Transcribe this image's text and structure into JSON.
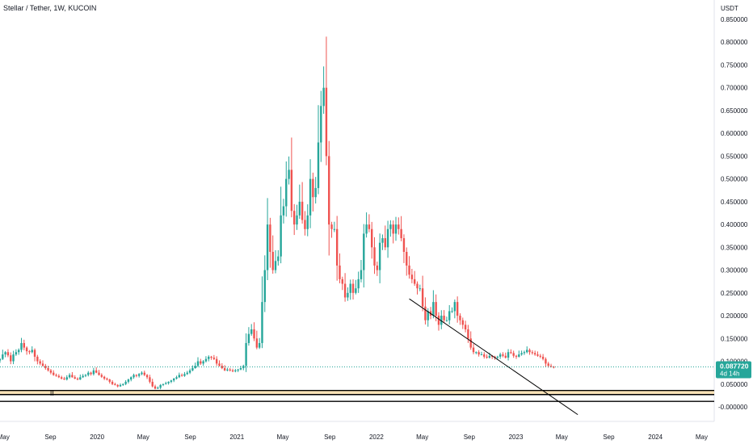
{
  "title": "Stellar / Tether, 1W, KUCOIN",
  "colors": {
    "up": "#26a69a",
    "down": "#ef5350",
    "zone_fill": "#fbe3b8",
    "line": "#000000",
    "price_line": "#26a69a",
    "axis_text": "#131722"
  },
  "chart_data": {
    "type": "candlestick",
    "title": "Stellar / Tether, 1W, KUCOIN",
    "y_unit_label": "USDT",
    "ylim": [
      -0.01,
      0.86
    ],
    "y_ticks": [
      0.85,
      0.8,
      0.75,
      0.7,
      0.65,
      0.6,
      0.55,
      0.5,
      0.45,
      0.4,
      0.35,
      0.3,
      0.25,
      0.2,
      0.15,
      0.1,
      0.05
    ],
    "y_tick_labels": [
      "0.850000",
      "0.800000",
      "0.750000",
      "0.700000",
      "0.650000",
      "0.600000",
      "0.550000",
      "0.500000",
      "0.450000",
      "0.400000",
      "0.350000",
      "0.300000",
      "0.250000",
      "0.200000",
      "0.150000",
      "0.100000",
      "0.050000"
    ],
    "y_bottom_label": "-0.000000",
    "x_range": [
      "2019-04-22",
      "2024-06-03"
    ],
    "x_ticks": [
      {
        "date": "2019-05-01",
        "label": "May"
      },
      {
        "date": "2019-09-01",
        "label": "Sep"
      },
      {
        "date": "2020-01-01",
        "label": "2020"
      },
      {
        "date": "2020-05-01",
        "label": "May"
      },
      {
        "date": "2020-09-01",
        "label": "Sep"
      },
      {
        "date": "2021-01-01",
        "label": "2021"
      },
      {
        "date": "2021-05-01",
        "label": "May"
      },
      {
        "date": "2021-09-01",
        "label": "Sep"
      },
      {
        "date": "2022-01-01",
        "label": "2022"
      },
      {
        "date": "2022-05-01",
        "label": "May"
      },
      {
        "date": "2022-09-01",
        "label": "Sep"
      },
      {
        "date": "2023-01-01",
        "label": "2023"
      },
      {
        "date": "2023-05-01",
        "label": "May"
      },
      {
        "date": "2023-09-01",
        "label": "Sep"
      },
      {
        "date": "2024-01-01",
        "label": "2024"
      },
      {
        "date": "2024-05-01",
        "label": "May"
      }
    ],
    "first_candle_date": "2019-04-22",
    "closes": [
      0.105,
      0.115,
      0.12,
      0.113,
      0.1,
      0.115,
      0.12,
      0.125,
      0.14,
      0.13,
      0.122,
      0.12,
      0.125,
      0.11,
      0.1,
      0.095,
      0.09,
      0.085,
      0.08,
      0.075,
      0.07,
      0.068,
      0.065,
      0.062,
      0.06,
      0.065,
      0.07,
      0.065,
      0.062,
      0.06,
      0.065,
      0.068,
      0.07,
      0.075,
      0.072,
      0.08,
      0.075,
      0.07,
      0.066,
      0.062,
      0.06,
      0.055,
      0.05,
      0.048,
      0.045,
      0.048,
      0.05,
      0.055,
      0.06,
      0.065,
      0.07,
      0.068,
      0.072,
      0.075,
      0.07,
      0.065,
      0.055,
      0.045,
      0.04,
      0.042,
      0.048,
      0.05,
      0.052,
      0.055,
      0.058,
      0.062,
      0.065,
      0.07,
      0.068,
      0.072,
      0.075,
      0.08,
      0.085,
      0.09,
      0.1,
      0.095,
      0.1,
      0.105,
      0.11,
      0.108,
      0.105,
      0.095,
      0.09,
      0.085,
      0.08,
      0.082,
      0.08,
      0.078,
      0.08,
      0.082,
      0.085,
      0.09,
      0.14,
      0.16,
      0.17,
      0.15,
      0.13,
      0.14,
      0.23,
      0.3,
      0.4,
      0.34,
      0.3,
      0.32,
      0.33,
      0.42,
      0.44,
      0.5,
      0.52,
      0.43,
      0.4,
      0.42,
      0.45,
      0.41,
      0.39,
      0.42,
      0.5,
      0.46,
      0.48,
      0.58,
      0.66,
      0.7,
      0.55,
      0.4,
      0.39,
      0.39,
      0.31,
      0.28,
      0.27,
      0.24,
      0.25,
      0.27,
      0.25,
      0.26,
      0.28,
      0.3,
      0.38,
      0.4,
      0.39,
      0.35,
      0.31,
      0.3,
      0.36,
      0.37,
      0.35,
      0.39,
      0.4,
      0.38,
      0.4,
      0.39,
      0.37,
      0.34,
      0.31,
      0.29,
      0.28,
      0.27,
      0.26,
      0.26,
      0.22,
      0.19,
      0.21,
      0.2,
      0.23,
      0.2,
      0.18,
      0.2,
      0.19,
      0.19,
      0.21,
      0.21,
      0.23,
      0.2,
      0.19,
      0.18,
      0.17,
      0.15,
      0.13,
      0.12,
      0.12,
      0.115,
      0.115,
      0.11,
      0.108,
      0.112,
      0.11,
      0.108,
      0.11,
      0.115,
      0.112,
      0.108,
      0.12,
      0.118,
      0.112,
      0.11,
      0.115,
      0.118,
      0.12,
      0.125,
      0.12,
      0.118,
      0.115,
      0.112,
      0.11,
      0.105,
      0.095,
      0.09,
      0.088,
      0.0877
    ],
    "last_price": {
      "value": 0.08772,
      "label": "0.087720",
      "countdown": "4d 14h"
    },
    "zones": [
      {
        "type": "support_band",
        "from": 0.027,
        "to": 0.036
      }
    ],
    "horizontal_lines": [
      0.036,
      0.027,
      0.012
    ],
    "trendline": [
      {
        "date": "2022-03-28",
        "price": 0.237
      },
      {
        "date": "2023-06-12",
        "price": -0.017
      }
    ],
    "annotations": [
      "II"
    ]
  }
}
